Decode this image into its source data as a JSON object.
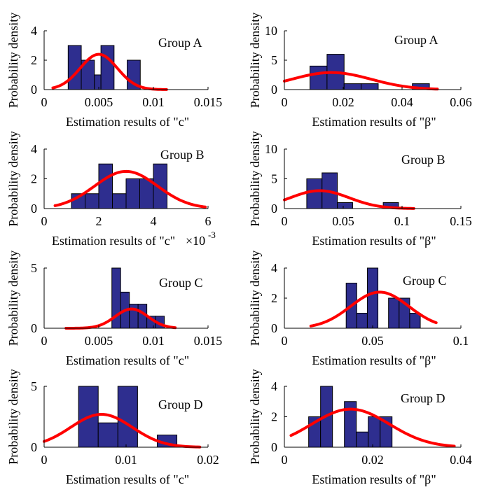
{
  "colors": {
    "bar_fill": "#2E2E8F",
    "bar_edge": "#000000",
    "fit_curve": "#FF0000",
    "axis": "#000000"
  },
  "chart_data": [
    {
      "type": "bar",
      "legend_label": "Group A",
      "xlabel": "Estimation results of \"c\"",
      "ylabel": "Probability density",
      "xlim": [
        0,
        0.015
      ],
      "ylim": [
        0,
        4
      ],
      "xticks": [
        "0",
        "0.005",
        "0.01",
        "0.015"
      ],
      "yticks": [
        "0",
        "2",
        "4"
      ],
      "bin_edges": [
        0.0022,
        0.0034,
        0.0046,
        0.0052,
        0.0064,
        0.0076,
        0.0088
      ],
      "values": [
        3,
        2,
        1,
        3,
        0,
        2
      ],
      "fit_normal": {
        "mean": 0.005,
        "sd": 0.0017,
        "x_range": [
          0.0008,
          0.0112
        ]
      }
    },
    {
      "type": "bar",
      "legend_label": "Group A",
      "xlabel": "Estimation results of \"β\"",
      "ylabel": "Probability density",
      "xlim": [
        0,
        0.06
      ],
      "ylim": [
        0,
        10
      ],
      "xticks": [
        "0",
        "0.02",
        "0.04",
        "0.06"
      ],
      "yticks": [
        "0",
        "5",
        "10"
      ],
      "bin_edges": [
        0.0087,
        0.0145,
        0.0203,
        0.0261,
        0.0319,
        0.0377,
        0.0435,
        0.0493
      ],
      "values": [
        4,
        6,
        1,
        1,
        0,
        0,
        1
      ],
      "fit_normal": {
        "mean": 0.016,
        "sd": 0.0135,
        "x_range": [
          0,
          0.052
        ]
      }
    },
    {
      "type": "bar",
      "legend_label": "Group B",
      "xlabel": "Estimation results of \"c\"",
      "exponent_label": "×10",
      "exponent_power": "-3",
      "ylabel": "Probability density",
      "xlim": [
        0,
        6
      ],
      "ylim": [
        0,
        4
      ],
      "xticks": [
        "0",
        "2",
        "4",
        "6"
      ],
      "yticks": [
        "0",
        "2",
        "4"
      ],
      "bin_edges": [
        1.0,
        1.5,
        2.0,
        2.5,
        3.0,
        3.5,
        4.0,
        4.5
      ],
      "values": [
        1,
        1,
        3,
        1,
        2,
        2,
        3
      ],
      "fit_normal": {
        "mean": 3.0,
        "sd": 1.15,
        "x_range": [
          0.4,
          5.9
        ]
      }
    },
    {
      "type": "bar",
      "legend_label": "Group B",
      "xlabel": "Estimation results of \"β\"",
      "ylabel": "Probability density",
      "xlim": [
        0,
        0.15
      ],
      "ylim": [
        0,
        10
      ],
      "xticks": [
        "0",
        "0.05",
        "0.1",
        "0.15"
      ],
      "yticks": [
        "0",
        "5",
        "10"
      ],
      "bin_edges": [
        0.019,
        0.032,
        0.045,
        0.058,
        0.071,
        0.084,
        0.097,
        0.11
      ],
      "values": [
        5,
        6,
        1,
        0,
        0,
        1,
        0
      ],
      "fit_normal": {
        "mean": 0.03,
        "sd": 0.025,
        "x_range": [
          0,
          0.11
        ]
      }
    },
    {
      "type": "bar",
      "legend_label": "Group C",
      "xlabel": "Estimation results of \"c\"",
      "ylabel": "Probability density",
      "xlim": [
        0,
        0.015
      ],
      "ylim": [
        0,
        5
      ],
      "xticks": [
        "0",
        "0.005",
        "0.01",
        "0.015"
      ],
      "yticks": [
        "0",
        "5"
      ],
      "bin_edges": [
        0.0062,
        0.007,
        0.0078,
        0.0086,
        0.0094,
        0.0102,
        0.011
      ],
      "values": [
        5,
        3,
        2,
        2,
        1,
        1
      ],
      "fit_normal": {
        "mean": 0.008,
        "sd": 0.0015,
        "x_range": [
          0.002,
          0.012
        ]
      }
    },
    {
      "type": "bar",
      "legend_label": "Group C",
      "xlabel": "Estimation results of \"β\"",
      "ylabel": "Probability density",
      "xlim": [
        0,
        0.1
      ],
      "ylim": [
        0,
        4
      ],
      "xticks": [
        "0",
        "0.05",
        "0.1"
      ],
      "yticks": [
        "0",
        "2",
        "4"
      ],
      "bin_edges": [
        0.035,
        0.041,
        0.047,
        0.053,
        0.059,
        0.065,
        0.071,
        0.077
      ],
      "values": [
        3,
        1,
        4,
        0,
        2,
        2,
        1
      ],
      "fit_normal": {
        "mean": 0.054,
        "sd": 0.0165,
        "x_range": [
          0.015,
          0.086
        ]
      }
    },
    {
      "type": "bar",
      "legend_label": "Group D",
      "xlabel": "Estimation results of \"c\"",
      "ylabel": "Probability density",
      "xlim": [
        0,
        0.02
      ],
      "ylim": [
        0,
        5
      ],
      "xticks": [
        "0",
        "0.01",
        "0.02"
      ],
      "yticks": [
        "0",
        "5"
      ],
      "bin_edges": [
        0.0042,
        0.0066,
        0.009,
        0.0114,
        0.0138,
        0.0162
      ],
      "values": [
        5,
        2,
        5,
        0,
        1
      ],
      "fit_normal": {
        "mean": 0.007,
        "sd": 0.00375,
        "x_range": [
          0,
          0.019
        ]
      }
    },
    {
      "type": "bar",
      "legend_label": "Group D",
      "xlabel": "Estimation results of \"β\"",
      "ylabel": "Probability density",
      "xlim": [
        0,
        0.04
      ],
      "ylim": [
        0,
        4
      ],
      "xticks": [
        "0",
        "0.02",
        "0.04"
      ],
      "yticks": [
        "0",
        "2",
        "4"
      ],
      "bin_edges": [
        0.0055,
        0.0082,
        0.0109,
        0.0136,
        0.0163,
        0.019,
        0.0217,
        0.0244,
        0.0271
      ],
      "values": [
        2,
        4,
        0,
        3,
        1,
        2,
        2,
        0
      ],
      "fit_normal": {
        "mean": 0.015,
        "sd": 0.0088,
        "x_range": [
          0.0015,
          0.0385
        ]
      }
    }
  ]
}
